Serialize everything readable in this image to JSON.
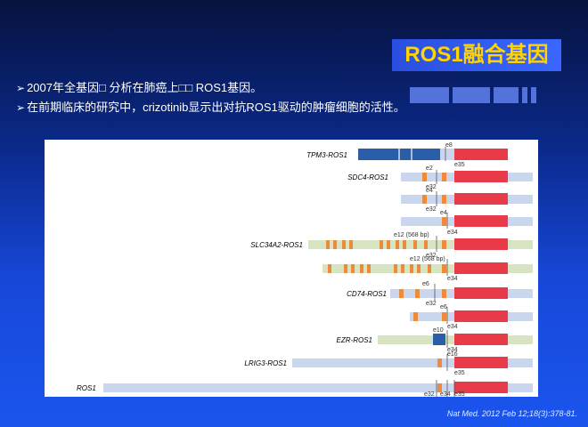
{
  "slide": {
    "title": "ROS1融合基因",
    "bullets": [
      {
        "text": "2007年全基因□ 分析在肺癌上□□ ROS1基因。"
      },
      {
        "text": "在前期临床的研究中，crizotinib显示出对抗ROS1驱动的肿瘤细胞的活性。"
      }
    ],
    "bullet_marker": "➢",
    "citation": "Nat Med. 2012 Feb 12;18(3):378-81."
  },
  "colors": {
    "title_text": "#ffd400",
    "ros1_kinase": "#e83a48",
    "partner_blue": "#2b5ea8",
    "exon_orange": "#ee8a3c",
    "backbone_blue": "#cad5ee",
    "backbone_green": "#d7e4c2"
  },
  "figure": {
    "fusions": [
      {
        "name": "TPM3-ROS1",
        "labels": [
          "e8",
          "e35"
        ]
      },
      {
        "name": "SDC4-ROS1",
        "labels": [
          "e2",
          "e32"
        ]
      },
      {
        "name": "",
        "labels": [
          "e4",
          "e32"
        ]
      },
      {
        "name": "",
        "labels": [
          "e4",
          "e34"
        ]
      },
      {
        "name": "SLC34A2-ROS1",
        "labels": [
          "e12 (568 bp)",
          "e32"
        ]
      },
      {
        "name": "",
        "labels": [
          "e12 (568 bp)",
          "e34"
        ]
      },
      {
        "name": "CD74-ROS1",
        "labels": [
          "e6",
          "e32"
        ]
      },
      {
        "name": "",
        "labels": [
          "e6",
          "e34"
        ]
      },
      {
        "name": "EZR-ROS1",
        "labels": [
          "e10",
          "e34"
        ]
      },
      {
        "name": "LRIG3-ROS1",
        "labels": [
          "e16",
          "e35"
        ]
      },
      {
        "name": "ROS1",
        "labels": [
          "e32",
          "e34",
          "e35"
        ]
      }
    ]
  }
}
